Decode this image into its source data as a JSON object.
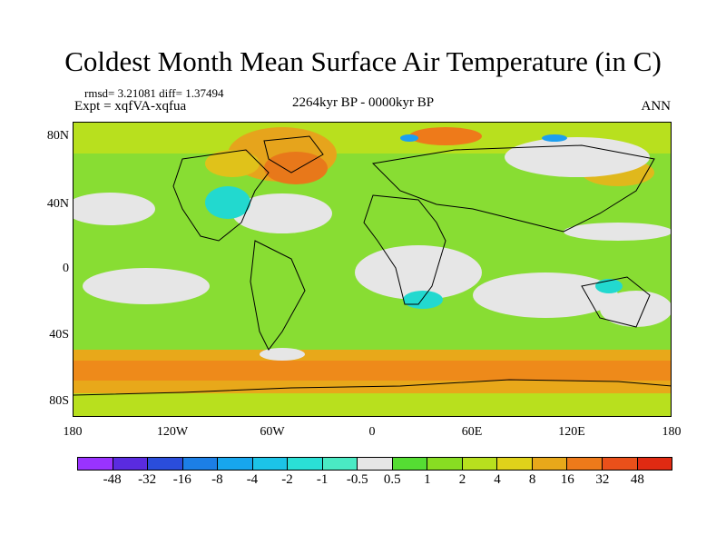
{
  "title": "Coldest Month Mean Surface Air Temperature (in C)",
  "stats": "rmsd= 3.21081 diff= 1.37494",
  "experiment": "Expt = xqfVA-xqfua",
  "period": "2264kyr BP - 0000kyr BP",
  "season": "ANN",
  "y_axis_labels": [
    "80N",
    "40N",
    "0",
    "40S",
    "80S"
  ],
  "x_axis_labels": [
    "180",
    "120W",
    "60W",
    "0",
    "60E",
    "120E",
    "180"
  ],
  "colorbar": {
    "labels": [
      "-48",
      "-32",
      "-16",
      "-8",
      "-4",
      "-2",
      "-1",
      "-0.5",
      "0.5",
      "1",
      "2",
      "4",
      "8",
      "16",
      "32",
      "48"
    ],
    "colors": [
      "#9933ff",
      "#5a2be0",
      "#2a4ddb",
      "#1c7fe6",
      "#17a6ee",
      "#1cc4e8",
      "#2ae0d6",
      "#4aeac4",
      "#e6e6e6",
      "#55dd33",
      "#88dd22",
      "#b8e01e",
      "#e0d21a",
      "#e8a81a",
      "#ee7a1a",
      "#ea501a",
      "#e02a12"
    ]
  },
  "legend_colors": {
    "neutral": "#e6e6e6",
    "green": "#66dd33",
    "lime": "#99dd22",
    "yellow_green": "#c0e020",
    "yellow": "#e6d21a",
    "orange": "#eba21c",
    "red_orange": "#e46a1a",
    "cyan": "#22d9cf",
    "blue": "#1c9ff0"
  }
}
